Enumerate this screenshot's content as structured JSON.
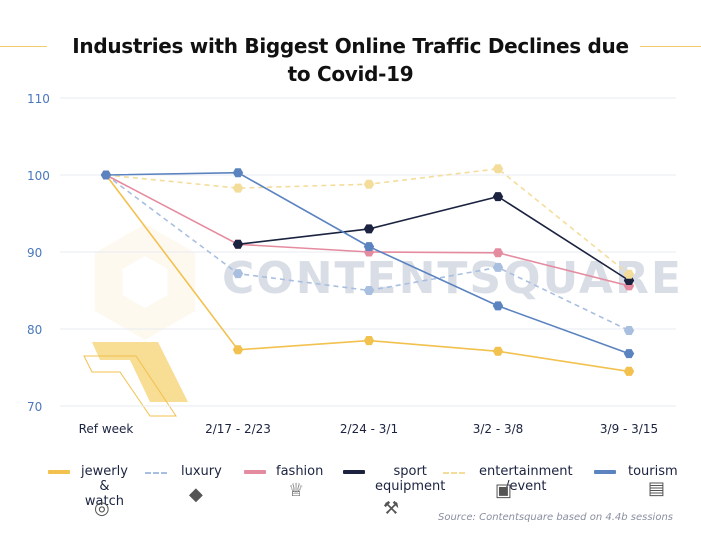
{
  "chart_data": {
    "type": "line",
    "title": "Industries with Biggest Online Traffic Declines due to Covid-19",
    "categories": [
      "Ref week",
      "2/17 - 2/23",
      "2/24 - 3/1",
      "3/2 - 3/8",
      "3/9 - 3/15"
    ],
    "ylim": [
      70,
      110
    ],
    "yticks": [
      70,
      80,
      90,
      100,
      110
    ],
    "grid": true,
    "legend_position": "bottom",
    "watermark": "CONTENTSQUARE",
    "series": [
      {
        "name": "jewerly\n& watch",
        "color": "#f2c14e",
        "dash": false,
        "icon": "ring-icon",
        "values": [
          100,
          77.3,
          78.5,
          77.1,
          74.5
        ]
      },
      {
        "name": "luxury",
        "color": "#a9bfe0",
        "dash": true,
        "icon": "diamond-icon",
        "values": [
          100,
          87.2,
          85.0,
          88.0,
          79.8
        ]
      },
      {
        "name": "fashion",
        "color": "#e58b9f",
        "dash": false,
        "icon": "clothes-icon",
        "values": [
          100,
          91.0,
          90.0,
          89.9,
          85.6
        ]
      },
      {
        "name": "sport\nequipment",
        "color": "#1b2340",
        "dash": false,
        "icon": "dumbbell-icon",
        "values": [
          null,
          91.0,
          93.0,
          97.2,
          86.3
        ]
      },
      {
        "name": "entertainment\n/event",
        "color": "#f4dd9a",
        "dash": true,
        "icon": "ticket-icon",
        "values": [
          100,
          98.3,
          98.8,
          100.8,
          87.1
        ]
      },
      {
        "name": "tourism",
        "color": "#5a83c0",
        "dash": false,
        "icon": "suitcase-icon",
        "values": [
          100,
          100.3,
          90.7,
          83.0,
          76.8
        ]
      }
    ]
  },
  "source": "Source: Contentsquare based on 4.4b sessions"
}
